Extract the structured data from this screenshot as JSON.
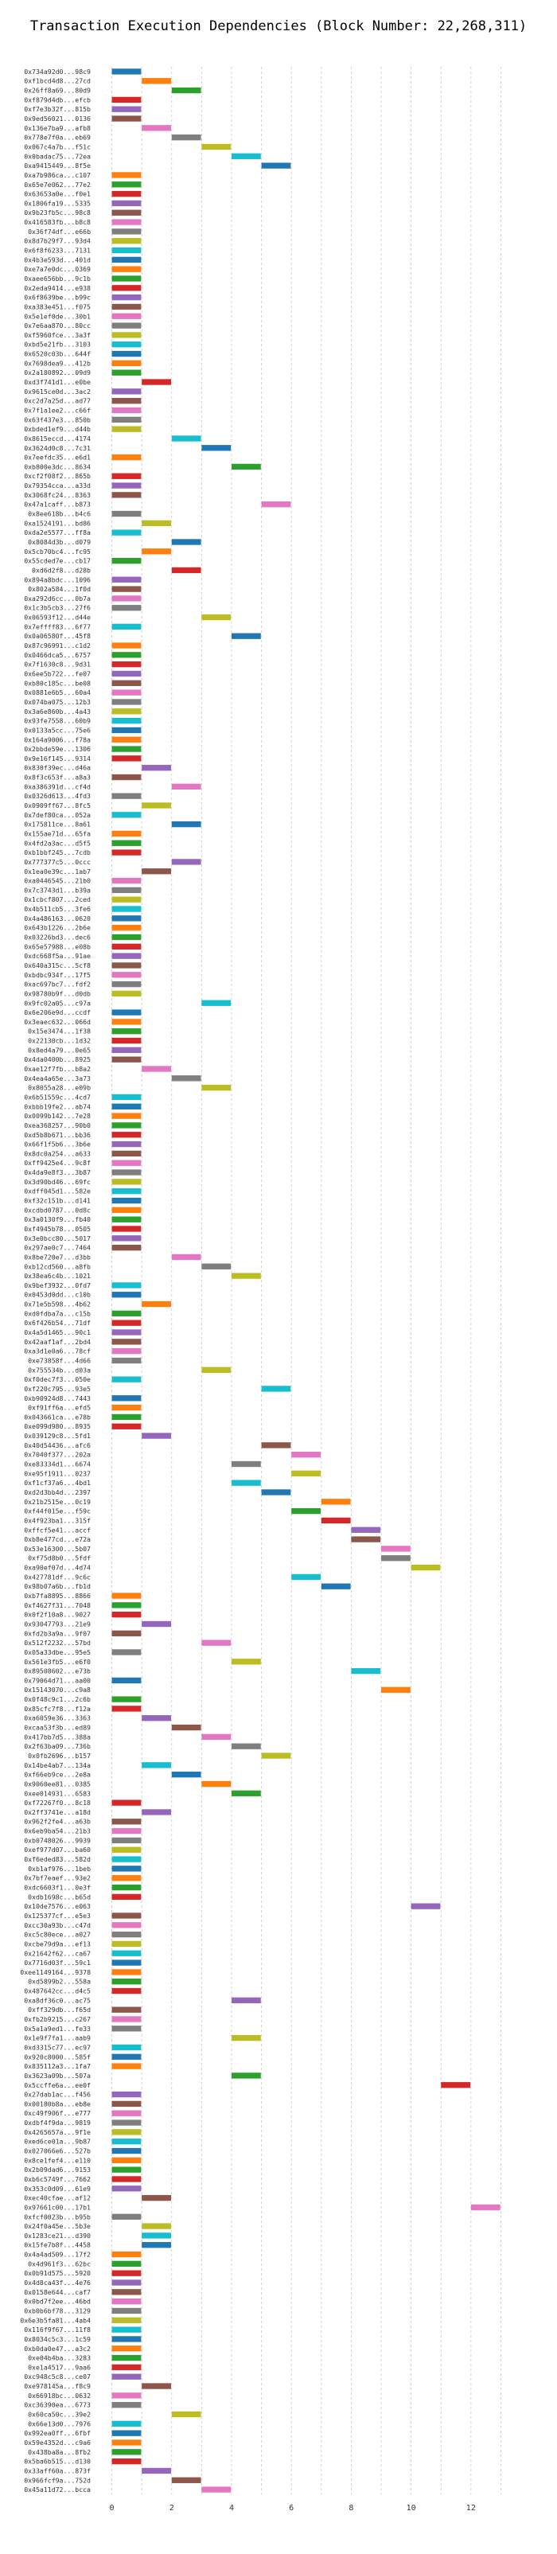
{
  "chart_data": {
    "type": "bar",
    "orientation": "horizontal",
    "title": "Transaction Execution Dependencies (Block Number: 22,268,311)",
    "xlabel": "",
    "ylabel": "",
    "xlim": [
      -0.6,
      13.6
    ],
    "x_ticks": [
      0,
      2,
      4,
      6,
      8,
      10,
      12
    ],
    "grid": "vertical-dashed",
    "palette": [
      "#1f77b4",
      "#ff7f0e",
      "#2ca02c",
      "#d62728",
      "#9467bd",
      "#8c564b",
      "#e377c2",
      "#7f7f7f",
      "#bcbd22",
      "#17becf"
    ],
    "rows": [
      [
        "0x734a92d0...98c9",
        0,
        0
      ],
      [
        "0xf1bcd4d8...27cd",
        1,
        1
      ],
      [
        "0x26ff8a69...80d9",
        2,
        2
      ],
      [
        "0xf879d4db...efcb",
        0,
        3
      ],
      [
        "0xf7e3b32f...815b",
        0,
        4
      ],
      [
        "0x9ed56021...0136",
        0,
        5
      ],
      [
        "0x136e7ba9...afb8",
        1,
        6
      ],
      [
        "0x778e7f0a...eb69",
        2,
        7
      ],
      [
        "0x067c4a7b...f51c",
        3,
        8
      ],
      [
        "0x0badac75...72ea",
        4,
        9
      ],
      [
        "0xa9415449...8f5e",
        5,
        0
      ],
      [
        "0xa7b986ca...c107",
        0,
        1
      ],
      [
        "0x65e7e062...77e2",
        0,
        2
      ],
      [
        "0x63653a0e...f0e1",
        0,
        3
      ],
      [
        "0x1806fa19...5335",
        0,
        4
      ],
      [
        "0x9b23fb5c...98c8",
        0,
        5
      ],
      [
        "0x416583fb...b8c8",
        0,
        6
      ],
      [
        "0x36f74df...e66b",
        0,
        7
      ],
      [
        "0x8d7b29f7...93d4",
        0,
        8
      ],
      [
        "0x6f8f6233...7131",
        0,
        9
      ],
      [
        "0x4b3e593d...401d",
        0,
        0
      ],
      [
        "0xe7a7e0dc...0369",
        0,
        1
      ],
      [
        "0xaee656bb...9c1b",
        0,
        2
      ],
      [
        "0x2eda9414...e938",
        0,
        3
      ],
      [
        "0x6f8639be...b99c",
        0,
        4
      ],
      [
        "0xa383e451...f075",
        0,
        5
      ],
      [
        "0x5e1ef0de...30b1",
        0,
        6
      ],
      [
        "0x7e6aa870...80cc",
        0,
        7
      ],
      [
        "0xf5960fce...3a3f",
        0,
        8
      ],
      [
        "0xbd5e21fb...3103",
        0,
        9
      ],
      [
        "0x6520c03b...644f",
        0,
        0
      ],
      [
        "0x7698dea9...412b",
        0,
        1
      ],
      [
        "0x2a180892...09d9",
        0,
        2
      ],
      [
        "0xd3f741d1...e0be",
        1,
        3
      ],
      [
        "0x9615ce0d...3ac2",
        0,
        4
      ],
      [
        "0xc2d7a25d...ad77",
        0,
        5
      ],
      [
        "0x7f1a1ee2...c66f",
        0,
        6
      ],
      [
        "0x63f437e3...850b",
        0,
        7
      ],
      [
        "0xbded1ef9...d44b",
        0,
        8
      ],
      [
        "0x8615eccd...4174",
        2,
        9
      ],
      [
        "0x3624d0c8...7c31",
        3,
        0
      ],
      [
        "0x7eefdc35...e6d1",
        0,
        1
      ],
      [
        "0xb800e3dc...8634",
        4,
        2
      ],
      [
        "0xcf2f08f2...865b",
        0,
        3
      ],
      [
        "0x79354cca...a33d",
        0,
        4
      ],
      [
        "0x3068fc24...8363",
        0,
        5
      ],
      [
        "0x47a1caff...b873",
        5,
        6
      ],
      [
        "0x8ee618b...b4c6",
        0,
        7
      ],
      [
        "0xa1524191...bd86",
        1,
        8
      ],
      [
        "0xda2e5577...ff8a",
        0,
        9
      ],
      [
        "0x8084d3b...d079",
        2,
        0
      ],
      [
        "0x5cb70bc4...fc95",
        1,
        1
      ],
      [
        "0x55cded7e...cb17",
        0,
        2
      ],
      [
        "0xd6d2f8...d28b",
        2,
        3
      ],
      [
        "0x894a8bdc...1096",
        0,
        4
      ],
      [
        "0x802a584...1f0d",
        0,
        5
      ],
      [
        "0xa292d6cc...0b7a",
        0,
        6
      ],
      [
        "0x1c3b5cb3...27f6",
        0,
        7
      ],
      [
        "0x06593f12...d44e",
        3,
        8
      ],
      [
        "0x7effff83...6f77",
        0,
        9
      ],
      [
        "0x0a06580f...45f8",
        4,
        0
      ],
      [
        "0x87c96991...c1d2",
        0,
        1
      ],
      [
        "0x0466dca5...6757",
        0,
        2
      ],
      [
        "0x7f1630c8...9d31",
        0,
        3
      ],
      [
        "0x6ee5b722...fe07",
        0,
        4
      ],
      [
        "0xb80c185c...be08",
        0,
        5
      ],
      [
        "0x0881e6b5...60a4",
        0,
        6
      ],
      [
        "0x074ba075...12b3",
        0,
        7
      ],
      [
        "0x3a6e860b...4a43",
        0,
        8
      ],
      [
        "0x93fe7558...60b9",
        0,
        9
      ],
      [
        "0x0133a5cc...75e6",
        0,
        0
      ],
      [
        "0x164a9006...f78a",
        0,
        1
      ],
      [
        "0x2bbde59e...1306",
        0,
        2
      ],
      [
        "0x9e16f145...9314",
        0,
        3
      ],
      [
        "0x830f39ec...d46a",
        1,
        4
      ],
      [
        "0x8f3c653f...a8a3",
        0,
        5
      ],
      [
        "0xa386391d...cf4d",
        2,
        6
      ],
      [
        "0x0326d613...4fd3",
        0,
        7
      ],
      [
        "0x0909ff67...8fc5",
        1,
        8
      ],
      [
        "0x7def80ca...052a",
        0,
        9
      ],
      [
        "0x175811ce...8a61",
        2,
        0
      ],
      [
        "0x155ae71d...65fa",
        0,
        1
      ],
      [
        "0x4fd2a3ac...d5f5",
        0,
        2
      ],
      [
        "0xb1bbf245...7cdb",
        0,
        3
      ],
      [
        "0x777377c5...0ccc",
        2,
        4
      ],
      [
        "0x1ea0e39c...1ab7",
        1,
        5
      ],
      [
        "0xa0446545...21b0",
        0,
        6
      ],
      [
        "0x7c3743d1...b39a",
        0,
        7
      ],
      [
        "0x1cbcf807...2ced",
        0,
        8
      ],
      [
        "0x4b511cb5...3fe6",
        0,
        9
      ],
      [
        "0x4a486163...0620",
        0,
        0
      ],
      [
        "0x643b1226...2b6e",
        0,
        1
      ],
      [
        "0x03226bd3...dec6",
        0,
        2
      ],
      [
        "0x65e57988...e08b",
        0,
        3
      ],
      [
        "0xdc668f5a...91ae",
        0,
        4
      ],
      [
        "0x640a315c...5cf8",
        0,
        5
      ],
      [
        "0xbdbc934f...17f5",
        0,
        6
      ],
      [
        "0xac697bc7...fdf2",
        0,
        7
      ],
      [
        "0x98780b9f...d0db",
        0,
        8
      ],
      [
        "0x9fc02a05...c97a",
        3,
        9
      ],
      [
        "0x6e206e9d...ccdf",
        0,
        0
      ],
      [
        "0x3eaec632...066d",
        0,
        1
      ],
      [
        "0x15e3474...1f38",
        0,
        2
      ],
      [
        "0x22130cb...1d32",
        0,
        3
      ],
      [
        "0x8ed4a79...0e65",
        0,
        4
      ],
      [
        "0x4da0400b...8925",
        0,
        5
      ],
      [
        "0xae12f7fb...b8a2",
        1,
        6
      ],
      [
        "0x4ea4a65e...3a73",
        2,
        7
      ],
      [
        "0x8055a28...e09b",
        3,
        8
      ],
      [
        "0x6b51559c...4cd7",
        0,
        9
      ],
      [
        "0xbbb19fe2...ab74",
        0,
        0
      ],
      [
        "0x0099b142...7e28",
        0,
        1
      ],
      [
        "0xea368257...90b0",
        0,
        2
      ],
      [
        "0xd5b8b671...bb36",
        0,
        3
      ],
      [
        "0x66f1f5b6...3b6e",
        0,
        4
      ],
      [
        "0x8dc0a254...a633",
        0,
        5
      ],
      [
        "0xff9425e4...9c8f",
        0,
        6
      ],
      [
        "0x4da9e8f3...3b87",
        0,
        7
      ],
      [
        "0x3d90bd46...69fc",
        0,
        8
      ],
      [
        "0xdff045d1...582e",
        0,
        9
      ],
      [
        "0xf32c151b...d141",
        0,
        0
      ],
      [
        "0xcdbd0787...0d8c",
        0,
        1
      ],
      [
        "0x3a0130f9...fb40",
        0,
        2
      ],
      [
        "0xf4945b78...0505",
        0,
        3
      ],
      [
        "0x3e0bcc80...5017",
        0,
        4
      ],
      [
        "0x297ae0c7...7464",
        0,
        5
      ],
      [
        "0x8be720e7...d3bb",
        2,
        6
      ],
      [
        "0xb12cd560...a8fb",
        3,
        7
      ],
      [
        "0x38ea6c4b...1021",
        4,
        8
      ],
      [
        "0x9bef3932...0fd7",
        0,
        9
      ],
      [
        "0x0453d0dd...c10b",
        0,
        0
      ],
      [
        "0x71e5b598...4b62",
        1,
        1
      ],
      [
        "0xd0fdba7a...c15b",
        0,
        2
      ],
      [
        "0x6f426b54...71df",
        0,
        3
      ],
      [
        "0x4a5d1465...90c1",
        0,
        4
      ],
      [
        "0x42aaf1af...2bd4",
        0,
        5
      ],
      [
        "0xa3d1e0a6...78cf",
        0,
        6
      ],
      [
        "0xe73858f...4d66",
        0,
        7
      ],
      [
        "0x755534b...d03a",
        3,
        8
      ],
      [
        "0xf0dec7f3...050e",
        0,
        9
      ],
      [
        "0xf220c795...93e5",
        5,
        9
      ],
      [
        "0xb90924d8...7443",
        0,
        0
      ],
      [
        "0xf91ff6a...efd5",
        0,
        1
      ],
      [
        "0x043661ca...e78b",
        0,
        2
      ],
      [
        "0xe099d980...8935",
        0,
        3
      ],
      [
        "0x039129c8...5fd1",
        1,
        4
      ],
      [
        "0x40d54436...afc6",
        5,
        5
      ],
      [
        "0x7040f377...202a",
        6,
        6
      ],
      [
        "0xe83334d1...6674",
        4,
        7
      ],
      [
        "0xe95f1911...0237",
        6,
        8
      ],
      [
        "0xf1cf37a6...4bd1",
        4,
        9
      ],
      [
        "0xd2d3bb4d...2397",
        5,
        0
      ],
      [
        "0x21b2515e...0c19",
        7,
        1
      ],
      [
        "0xf44f015e...f59c",
        6,
        2
      ],
      [
        "0x4f923ba1...315f",
        7,
        3
      ],
      [
        "0xffcf5e41...accf",
        8,
        4
      ],
      [
        "0xb8e477cd...e72a",
        8,
        5
      ],
      [
        "0x53e16300...5b07",
        9,
        6
      ],
      [
        "0xf75d8b0...5fdf",
        9,
        7
      ],
      [
        "0xa90ef07d...4d74",
        10,
        8
      ],
      [
        "0x427781df...9c6c",
        6,
        9
      ],
      [
        "0x98b07a6b...fb1d",
        7,
        0
      ],
      [
        "0xb7fa8895...8866",
        0,
        1
      ],
      [
        "0xf4627f31...7048",
        0,
        2
      ],
      [
        "0x0f2f10a8...9027",
        0,
        3
      ],
      [
        "0x93047793...21e9",
        1,
        4
      ],
      [
        "0xfd2b3a9a...9f07",
        0,
        5
      ],
      [
        "0x512f2232...57bd",
        3,
        6
      ],
      [
        "0x05a33dbe...95e5",
        0,
        7
      ],
      [
        "0x561e3fb5...e6f0",
        4,
        8
      ],
      [
        "0x89508602...e73b",
        8,
        9
      ],
      [
        "0x79064d71...aa00",
        0,
        0
      ],
      [
        "0x15143070...c9a8",
        9,
        1
      ],
      [
        "0x0f48c9c1...2c6b",
        0,
        2
      ],
      [
        "0x85cfc7f8...f12a",
        0,
        3
      ],
      [
        "0xa6059e36...3363",
        1,
        4
      ],
      [
        "0xcaa53f3b...ed89",
        2,
        5
      ],
      [
        "0x417bb7d5...388a",
        3,
        6
      ],
      [
        "0x2f63ba09...736b",
        4,
        7
      ],
      [
        "0x0fb2696...b157",
        5,
        8
      ],
      [
        "0x14be4ab7...134a",
        1,
        9
      ],
      [
        "0xf66eb9ce...2e8a",
        2,
        0
      ],
      [
        "0x9060ee81...0385",
        3,
        1
      ],
      [
        "0xee014931...6583",
        4,
        2
      ],
      [
        "0xf72267f0...8c18",
        0,
        3
      ],
      [
        "0x2ff3741e...a18d",
        1,
        4
      ],
      [
        "0x962f2fe4...a63b",
        0,
        5
      ],
      [
        "0x6eb9ba54...21b3",
        0,
        6
      ],
      [
        "0xb0748026...9939",
        0,
        7
      ],
      [
        "0xef977d07...ba60",
        0,
        8
      ],
      [
        "0xf6eded83...582d",
        0,
        9
      ],
      [
        "0xb1af976...1beb",
        0,
        0
      ],
      [
        "0x7bf7eaef...93e2",
        0,
        1
      ],
      [
        "0xdc6603f1...0e3f",
        0,
        2
      ],
      [
        "0xdb1698c...b65d",
        0,
        3
      ],
      [
        "0x10de7576...e063",
        10,
        4
      ],
      [
        "0x125377cf...e5e3",
        0,
        5
      ],
      [
        "0xcc30a93b...c47d",
        0,
        6
      ],
      [
        "0xc5c80ece...a027",
        0,
        7
      ],
      [
        "0xcbe79d9a...ef13",
        0,
        8
      ],
      [
        "0x21642f62...ca67",
        0,
        9
      ],
      [
        "0x7716d03f...59c1",
        0,
        0
      ],
      [
        "0xee1149164...9378",
        0,
        1
      ],
      [
        "0xd5899b2...558a",
        0,
        2
      ],
      [
        "0x487642cc...d4c5",
        0,
        3
      ],
      [
        "0xa8df36c0...ac75",
        4,
        4
      ],
      [
        "0xff329db...f65d",
        0,
        5
      ],
      [
        "0xfb2b9215...c267",
        0,
        6
      ],
      [
        "0x5a1a9ed1...fe33",
        0,
        7
      ],
      [
        "0x1e9f7fa1...aab9",
        4,
        8
      ],
      [
        "0xd3315c77...ec97",
        0,
        9
      ],
      [
        "0x920c8000...585f",
        0,
        0
      ],
      [
        "0x835112a3...1fa7",
        0,
        1
      ],
      [
        "0x3623a09b...507a",
        4,
        2
      ],
      [
        "0x5ccffe6a...ee0f",
        11,
        3
      ],
      [
        "0x27dab1ac...f456",
        0,
        4
      ],
      [
        "0x00180b8a...eb8e",
        0,
        5
      ],
      [
        "0xc49f906f...e777",
        0,
        6
      ],
      [
        "0xdbf4f9da...9819",
        0,
        7
      ],
      [
        "0x4265657a...9f1e",
        0,
        8
      ],
      [
        "0xed6ce01a...9b87",
        0,
        9
      ],
      [
        "0x027066e6...527b",
        0,
        0
      ],
      [
        "0x8ce1fef4...e110",
        0,
        1
      ],
      [
        "0x2b09dad6...9153",
        0,
        2
      ],
      [
        "0xb6c5749f...7662",
        0,
        3
      ],
      [
        "0x353c0d09...61e9",
        0,
        4
      ],
      [
        "0xec40cfae...af12",
        1,
        5
      ],
      [
        "0x97661c00...17b1",
        12,
        6
      ],
      [
        "0xfcf0023b...b95b",
        0,
        7
      ],
      [
        "0x24f0a45e...5b3e",
        1,
        8
      ],
      [
        "0x1283ce21...d390",
        1,
        9
      ],
      [
        "0x15fe7b8f...4458",
        1,
        0
      ],
      [
        "0x4a4ad509...17f2",
        0,
        1
      ],
      [
        "0x4d961f3...62bc",
        0,
        2
      ],
      [
        "0x0b91d575...5920",
        0,
        3
      ],
      [
        "0x4d8ca43f...4e76",
        0,
        4
      ],
      [
        "0x0158e644...caf7",
        0,
        5
      ],
      [
        "0x0bd7f2ee...46bd",
        0,
        6
      ],
      [
        "0xb0b6bf78...3129",
        0,
        7
      ],
      [
        "0x6e3b5fa81...4ab4",
        0,
        8
      ],
      [
        "0x116f9f67...11f8",
        0,
        9
      ],
      [
        "0x8034c5c3...1c59",
        0,
        0
      ],
      [
        "0xb0da0e47...a3c2",
        0,
        1
      ],
      [
        "0xe04b4ba...3283",
        0,
        2
      ],
      [
        "0xe1a4517...9aa6",
        0,
        3
      ],
      [
        "0xc948c5c8...ce07",
        0,
        4
      ],
      [
        "0xe978145a...f8c9",
        1,
        5
      ],
      [
        "0x66918bc...0632",
        0,
        6
      ],
      [
        "0xc36390ea...6773",
        0,
        7
      ],
      [
        "0x60ca50c...39e2",
        2,
        8
      ],
      [
        "0x66e13d0...7976",
        0,
        9
      ],
      [
        "0x992ea0ff...6fbf",
        0,
        0
      ],
      [
        "0x59e4352d...c9a6",
        0,
        1
      ],
      [
        "0x438ba8a...8fb2",
        0,
        2
      ],
      [
        "0x5ba6b515...d130",
        0,
        3
      ],
      [
        "0x33aff60a...873f",
        1,
        4
      ],
      [
        "0x966fcf9a...752d",
        2,
        5
      ],
      [
        "0x45a11d72...bcca",
        3,
        6
      ]
    ]
  }
}
